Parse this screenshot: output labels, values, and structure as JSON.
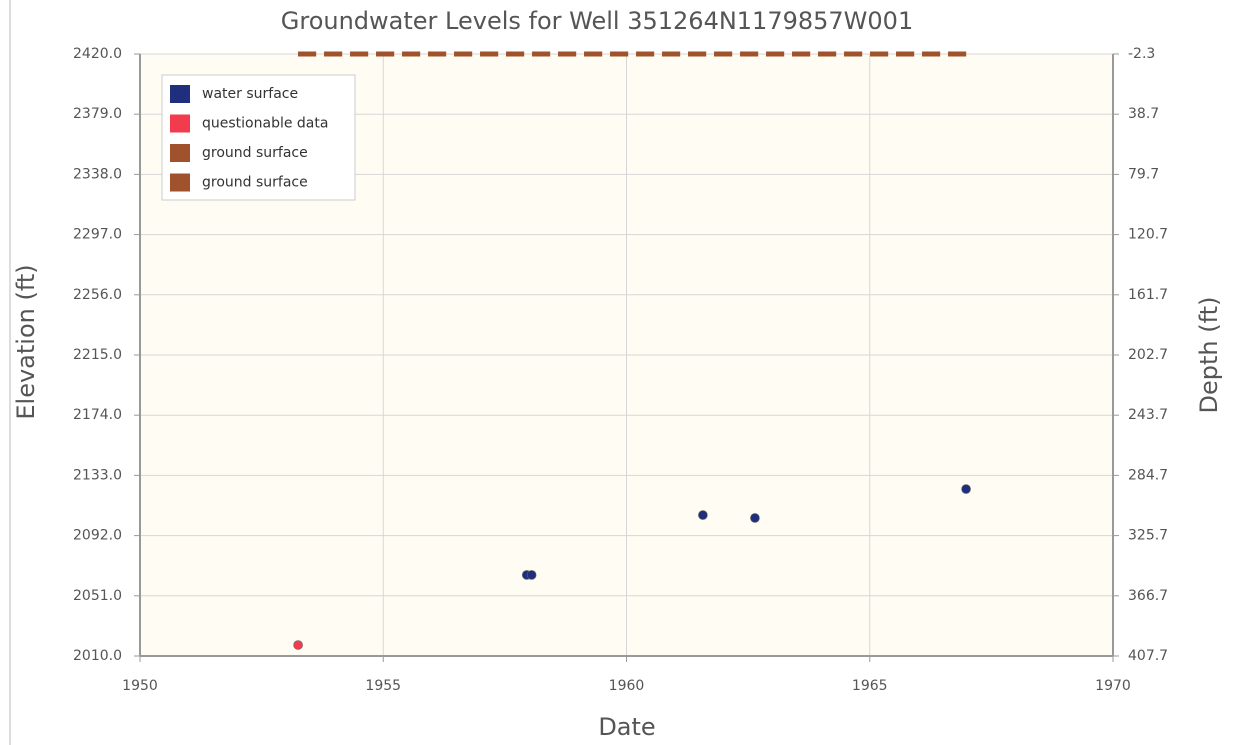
{
  "chart_data": {
    "type": "scatter",
    "title": "Groundwater Levels for Well 351264N1179857W001",
    "x_label": "Date",
    "y_label": "Elevation (ft)",
    "y2_label": "Depth (ft)",
    "xlim": [
      1950,
      1970
    ],
    "xticks": [
      1950,
      1955,
      1960,
      1965,
      1970
    ],
    "ylim": [
      2010,
      2420
    ],
    "yticks": [
      {
        "value": 2010,
        "label": "2010.0"
      },
      {
        "value": 2051,
        "label": "2051.0"
      },
      {
        "value": 2092,
        "label": "2092.0"
      },
      {
        "value": 2133,
        "label": "2133.0"
      },
      {
        "value": 2174,
        "label": "2174.0"
      },
      {
        "value": 2215,
        "label": "2215.0"
      },
      {
        "value": 2256,
        "label": "2256.0"
      },
      {
        "value": 2297,
        "label": "2297.0"
      },
      {
        "value": 2338,
        "label": "2338.0"
      },
      {
        "value": 2379,
        "label": "2379.0"
      },
      {
        "value": 2420,
        "label": "2420.0"
      }
    ],
    "y2lim": [
      407.7,
      -2.3
    ],
    "y2ticks": [
      407.7,
      366.7,
      325.7,
      284.7,
      243.7,
      202.7,
      161.7,
      120.7,
      79.7,
      38.7,
      -2.3
    ],
    "grid": true,
    "legend": "top-left",
    "series": [
      {
        "name": "water surface",
        "color": "#1f2f7e",
        "mode": "markers",
        "x": [
          1957.95,
          1958.05,
          1961.57,
          1962.64,
          1966.98
        ],
        "values": [
          2065.2,
          2065.2,
          2106,
          2104,
          2123.7
        ]
      },
      {
        "name": "questionable data",
        "color": "#f23b4c",
        "mode": "markers",
        "x": [
          1953.25
        ],
        "values": [
          2017.5
        ]
      },
      {
        "name": "ground surface",
        "color": "#a0522d",
        "mode": "dashed-line",
        "x": [
          1953.25,
          1967.05
        ],
        "values": [
          2420,
          2420
        ]
      },
      {
        "name": "ground surface",
        "color": "#a0522d",
        "mode": "dashed-line",
        "axis": "y2",
        "x": [
          1953.25,
          1967.05
        ],
        "values": [
          -2.3,
          -2.3
        ]
      }
    ]
  }
}
